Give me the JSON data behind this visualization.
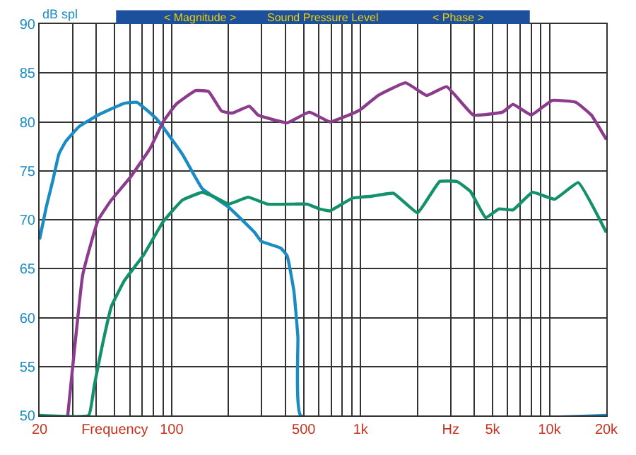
{
  "chart_data": {
    "type": "line",
    "title": "Sound Pressure Level",
    "ylabel": "dB spl",
    "annotations": [
      "< Magnitude >",
      "< Phase >"
    ],
    "log": "x",
    "grid": true,
    "marker": "none",
    "line_style": "solid",
    "xlim": [
      20,
      20000
    ],
    "ylim": [
      50,
      90
    ],
    "yticks": [
      50,
      55,
      60,
      65,
      70,
      75,
      80,
      85,
      90
    ],
    "xticks": [
      20,
      {
        "value": 30,
        "label": null
      },
      {
        "value": 40,
        "label": null
      },
      {
        "value": 50,
        "label": "Frequency"
      },
      {
        "value": 60,
        "label": null
      },
      {
        "value": 70,
        "label": null
      },
      {
        "value": 80,
        "label": null
      },
      {
        "value": 90,
        "label": null
      },
      100,
      {
        "value": 200,
        "label": null
      },
      {
        "value": 300,
        "label": null
      },
      {
        "value": 400,
        "label": null
      },
      500,
      {
        "value": 600,
        "label": null
      },
      {
        "value": 700,
        "label": null
      },
      {
        "value": 800,
        "label": null
      },
      {
        "value": 900,
        "label": null
      },
      {
        "value": 1000,
        "label": "1k"
      },
      {
        "value": 2000,
        "label": null
      },
      {
        "value": 3000,
        "label": "Hz"
      },
      {
        "value": 4000,
        "label": null
      },
      {
        "value": 5000,
        "label": "5k"
      },
      {
        "value": 6000,
        "label": null
      },
      {
        "value": 7000,
        "label": null
      },
      {
        "value": 8000,
        "label": null
      },
      {
        "value": 9000,
        "label": null
      },
      {
        "value": 10000,
        "label": "10k"
      },
      {
        "value": 20000,
        "label": "20k"
      }
    ],
    "series": [
      {
        "color": "#1a8cc4",
        "x": [
          20,
          21.7,
          23.5,
          25.3,
          27.5,
          32.3,
          40.9,
          56.3,
          65.6,
          83.3,
          114,
          145,
          200,
          275,
          298,
          378,
          409,
          444,
          466,
          482,
          20000
        ],
        "values": [
          68,
          71.3,
          74,
          76.7,
          78,
          79.5,
          80.7,
          81.9,
          82,
          80.3,
          76.7,
          73.2,
          71.3,
          68.7,
          67.8,
          67.1,
          66.3,
          62.7,
          58,
          50,
          50
        ]
      },
      {
        "color": "#8c3c8c",
        "x": [
          28.2,
          33.8,
          37.7,
          40.9,
          47.9,
          60.8,
          77,
          90.2,
          105.6,
          134,
          157,
          184,
          209,
          258,
          287,
          348,
          409,
          536,
          689,
          942,
          1006,
          1239,
          1732,
          2240,
          2855,
          3952,
          5650,
          6410,
          8010,
          10340,
          13800,
          16660,
          20000
        ],
        "values": [
          50,
          64.3,
          67.8,
          70,
          72,
          74.4,
          77.3,
          80,
          81.8,
          83.2,
          83.1,
          81.1,
          80.9,
          81.6,
          80.7,
          80.2,
          79.9,
          81,
          80,
          81,
          81.3,
          82.7,
          84,
          82.7,
          83.6,
          80.7,
          81,
          81.8,
          80.7,
          82.2,
          82,
          80.7,
          78.2
        ]
      },
      {
        "color": "#13916a",
        "x": [
          20,
          36.4,
          39,
          42.9,
          47.9,
          56.3,
          71.1,
          90.2,
          114,
          145,
          170,
          200,
          254,
          322,
          444,
          521,
          608,
          689,
          905,
          1144,
          1495,
          2003,
          2620,
          3246,
          3814,
          4600,
          5390,
          6410,
          8130,
          10670,
          14200,
          20000
        ],
        "values": [
          50,
          50,
          53.1,
          57.1,
          61.1,
          63.8,
          66.4,
          69.8,
          72,
          72.8,
          72.3,
          71.6,
          72.3,
          71.6,
          71.6,
          71.6,
          71.1,
          70.9,
          72.2,
          72.4,
          72.7,
          70.7,
          73.9,
          73.9,
          72.9,
          70.2,
          71.1,
          71,
          72.8,
          72.1,
          73.8,
          68.7
        ]
      }
    ]
  }
}
